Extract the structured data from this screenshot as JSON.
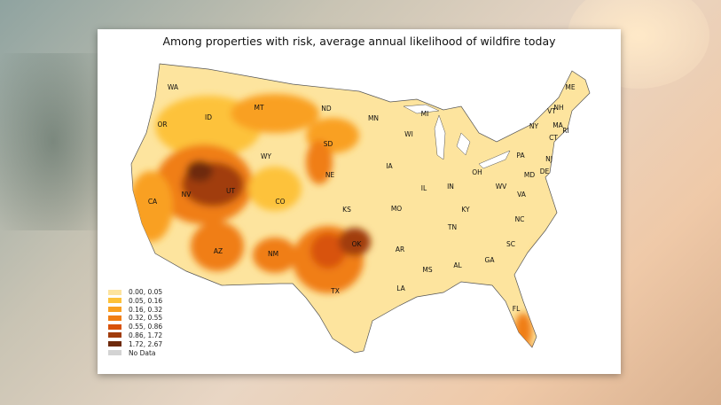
{
  "title": "Among properties with risk, average annual likelihood of wildfire today",
  "legend": [
    {
      "label": "0.00, 0.05",
      "color": "#fde49e"
    },
    {
      "label": "0.05, 0.16",
      "color": "#fdc23a"
    },
    {
      "label": "0.16, 0.32",
      "color": "#f9a021"
    },
    {
      "label": "0.32, 0.55",
      "color": "#f07e14"
    },
    {
      "label": "0.55, 0.86",
      "color": "#d8520a"
    },
    {
      "label": "0.86, 1.72",
      "color": "#a13c0c"
    },
    {
      "label": "1.72, 2.67",
      "color": "#6e2a0c"
    },
    {
      "label": "No Data",
      "color": "#d3d3d3"
    }
  ],
  "states": [
    "WA",
    "OR",
    "CA",
    "NV",
    "ID",
    "MT",
    "WY",
    "UT",
    "AZ",
    "CO",
    "NM",
    "ND",
    "SD",
    "NE",
    "KS",
    "OK",
    "TX",
    "MN",
    "IA",
    "MO",
    "AR",
    "LA",
    "WI",
    "IL",
    "MI",
    "IN",
    "OH",
    "KY",
    "TN",
    "MS",
    "AL",
    "GA",
    "FL",
    "SC",
    "NC",
    "VA",
    "WV",
    "PA",
    "NY",
    "ME",
    "VT",
    "NH",
    "MA",
    "RI",
    "CT",
    "NJ",
    "DE",
    "MD"
  ]
}
